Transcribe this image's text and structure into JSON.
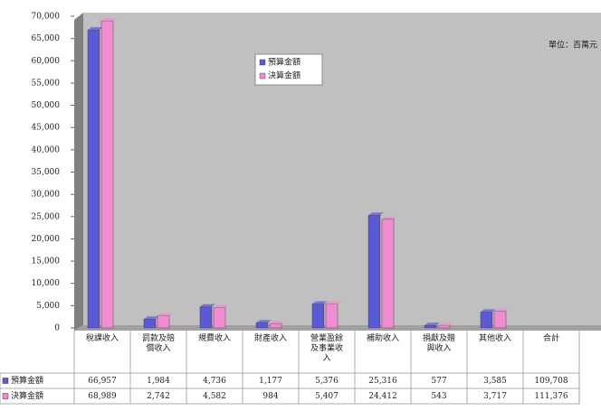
{
  "chart_data": {
    "type": "bar",
    "unit": "單位：百萬元",
    "categories": [
      "稅課收入",
      "罰款及賠償收入",
      "規費收入",
      "財產收入",
      "營業盈餘及事業收入",
      "補助收入",
      "捐獻及贈與收入",
      "其他收入"
    ],
    "series": [
      {
        "name": "預算金額",
        "color": "#5a5ad8",
        "values": [
          66957,
          1984,
          4736,
          1177,
          5376,
          25316,
          577,
          3585
        ],
        "value_labels": [
          "66,957",
          "1,984",
          "4,736",
          "1,177",
          "5,376",
          "25,316",
          "577",
          "3,585"
        ]
      },
      {
        "name": "決算金額",
        "color": "#f08ccf",
        "values": [
          68989,
          2742,
          4582,
          984,
          5407,
          24412,
          543,
          3717
        ],
        "value_labels": [
          "68,989",
          "2,742",
          "4,582",
          "984",
          "5,407",
          "24,412",
          "543",
          "3,717"
        ]
      }
    ],
    "total": {
      "label": "合計",
      "values": [
        109708,
        111376
      ],
      "value_labels": [
        "109,708",
        "111,376"
      ]
    },
    "ylim": [
      0,
      70000
    ],
    "yticks": [
      0,
      {
        "value": 5000,
        "label": "5,000"
      },
      {
        "value": 10000,
        "label": "10,000"
      },
      {
        "value": 15000,
        "label": "15,000"
      },
      {
        "value": 20000,
        "label": "20,000"
      },
      {
        "value": 25000,
        "label": "25,000"
      },
      {
        "value": 30000,
        "label": "30,000"
      },
      {
        "value": 35000,
        "label": "35,000"
      },
      {
        "value": 40000,
        "label": "40,000"
      },
      {
        "value": 45000,
        "label": "45,000"
      },
      {
        "value": 50000,
        "label": "50,000"
      },
      {
        "value": 55000,
        "label": "55,000"
      },
      {
        "value": 60000,
        "label": "60,000"
      },
      {
        "value": 65000,
        "label": "65,000"
      },
      {
        "value": 70000,
        "label": "70,000"
      }
    ],
    "legend": "top-center"
  }
}
